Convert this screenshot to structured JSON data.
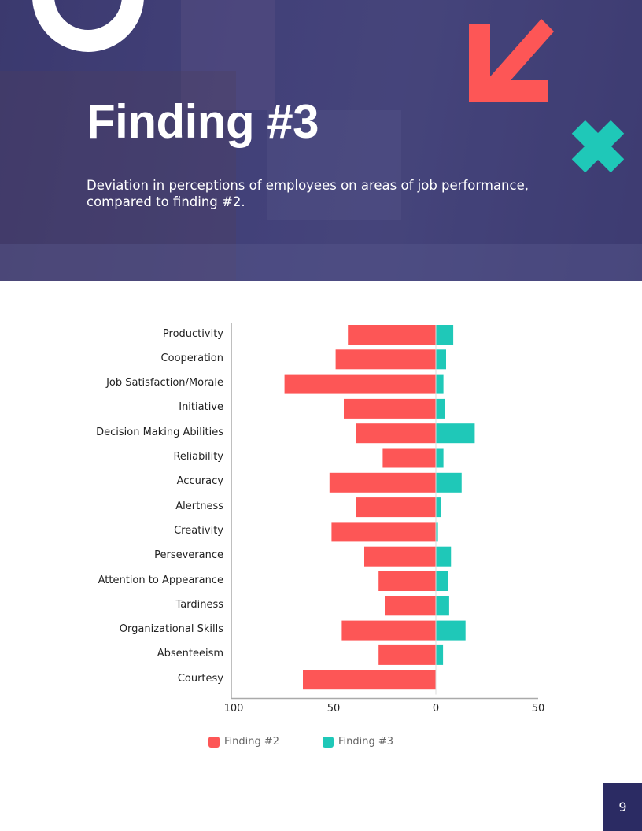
{
  "header": {
    "title": "Finding #3",
    "subtitle": "Deviation in perceptions of employees on areas of job performance, compared to finding #2."
  },
  "colors": {
    "finding2": "#fd5656",
    "finding3": "#1fc8b8",
    "hero_overlay": "#43427a",
    "page_badge": "#2b2b63"
  },
  "chart_data": {
    "type": "bar",
    "orientation": "horizontal-diverging",
    "categories": [
      "Productivity",
      "Cooperation",
      "Job Satisfaction/Morale",
      "Initiative",
      "Decision Making Abilities",
      "Reliability",
      "Accuracy",
      "Alertness",
      "Creativity",
      "Perseverance",
      "Attention to Appearance",
      "Tardiness",
      "Organizational Skills",
      "Absenteeism",
      "Courtesy"
    ],
    "series": [
      {
        "name": "Finding #2",
        "values": [
          -43,
          -49,
          -74,
          -45,
          -39,
          -26,
          -52,
          -39,
          -51,
          -35,
          -28,
          -25,
          -46,
          -28,
          -65
        ]
      },
      {
        "name": "Finding #3",
        "values": [
          8.5,
          5,
          3.7,
          4.5,
          19,
          3.7,
          12.6,
          2.3,
          1,
          7.4,
          5.8,
          6.5,
          14.5,
          3.5,
          0
        ]
      }
    ],
    "xlim": [
      -100,
      50
    ],
    "xticks": [
      -100,
      -50,
      0,
      50
    ],
    "xtick_labels": [
      "100",
      "50",
      "0",
      "50"
    ],
    "legend_position": "bottom",
    "grid": false
  },
  "page": {
    "number": "9"
  }
}
